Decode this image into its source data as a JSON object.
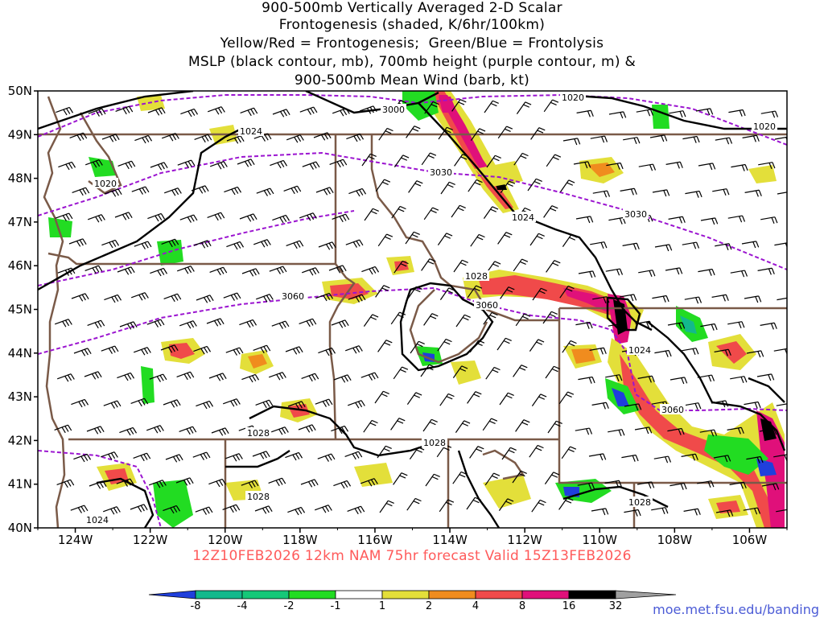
{
  "title_lines": [
    "900-500mb Vertically Averaged 2-D Scalar",
    "Frontogenesis (shaded, K/6hr/100km)",
    "Yellow/Red = Frontogenesis;  Green/Blue = Frontolysis",
    "MSLP (black contour, mb), 700mb height (purple contour, m) &",
    "900-500mb Mean Wind (barb, kt)"
  ],
  "valid_text": "12Z10FEB2026 12km NAM 75hr forecast Valid 15Z13FEB2026",
  "source_url": "moe.met.fsu.edu/banding",
  "axes": {
    "lon_labels": [
      "124W",
      "122W",
      "120W",
      "118W",
      "116W",
      "114W",
      "112W",
      "110W",
      "108W",
      "106W"
    ],
    "lat_labels": [
      "50N",
      "49N",
      "48N",
      "47N",
      "46N",
      "45N",
      "44N",
      "43N",
      "42N",
      "41N",
      "40N"
    ]
  },
  "colorbar": {
    "labels": [
      "-8",
      "-4",
      "-2",
      "-1",
      "1",
      "2",
      "4",
      "8",
      "16",
      "32"
    ],
    "colors": [
      "#1f3fdc",
      "#13b98c",
      "#15c878",
      "#22dc22",
      "#ffffff",
      "#e3df3a",
      "#f08c1e",
      "#f04a4a",
      "#e0107a",
      "#000000",
      "#a0a0a0"
    ]
  },
  "contour_labels": {
    "mslp": [
      "1020",
      "1020",
      "1024",
      "1024",
      "1028",
      "1028",
      "1028",
      "1028",
      "1024",
      "1024",
      "1024",
      "1028",
      "1020"
    ],
    "height": [
      "3000",
      "3030",
      "3030",
      "3060",
      "3060",
      "3060"
    ]
  },
  "colors": {
    "mslp": "#000000",
    "height": "#9b14d0",
    "borders": "#7a5a48",
    "valid_text": "#ff5a5a",
    "url": "#4b5bd6"
  }
}
